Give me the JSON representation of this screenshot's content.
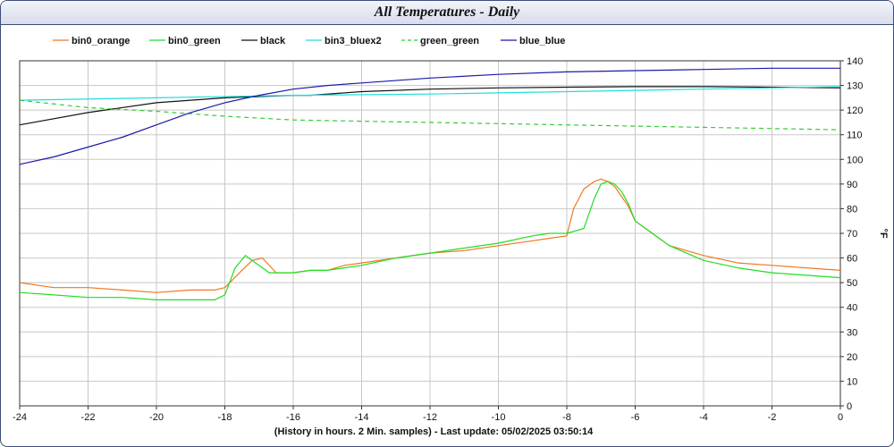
{
  "window": {
    "title": "All Temperatures - Daily"
  },
  "footer": {
    "caption": "(History in hours. 2 Min. samples) - Last update: 05/02/2025 03:50:14"
  },
  "colors": {
    "frame_border": "#3b4d7a",
    "grid": "#c8c8c8",
    "title_bg": "#e4e6f2"
  },
  "chart_data": {
    "type": "line",
    "title": "All Temperatures - Daily",
    "xlabel": "(History in hours. 2 Min. samples) - Last update: 05/02/2025 03:50:14",
    "ylabel": "°F",
    "xlim": [
      -24,
      0
    ],
    "ylim": [
      0,
      140
    ],
    "xticks": [
      -24,
      -22,
      -20,
      -18,
      -16,
      -14,
      -12,
      -10,
      -8,
      -6,
      -4,
      -2,
      0
    ],
    "yticks": [
      0,
      10,
      20,
      30,
      40,
      50,
      60,
      70,
      80,
      90,
      100,
      110,
      120,
      130,
      140
    ],
    "grid": true,
    "legend_position": "top",
    "series": [
      {
        "name": "bin0_orange",
        "color": "#f07820",
        "dash": "solid",
        "x": [
          -24,
          -23,
          -22,
          -21,
          -20,
          -19,
          -18.3,
          -18,
          -17.5,
          -17.2,
          -16.9,
          -16.5,
          -16,
          -15.5,
          -15,
          -14.5,
          -14,
          -13,
          -12,
          -11,
          -10,
          -9,
          -8.5,
          -8,
          -7.8,
          -7.5,
          -7.2,
          -7,
          -6.8,
          -6.6,
          -6.4,
          -6.2,
          -6,
          -5.5,
          -5,
          -4.5,
          -4,
          -3,
          -2,
          -1,
          0
        ],
        "y": [
          50,
          48,
          48,
          47,
          46,
          47,
          47,
          48,
          55,
          59,
          60,
          54,
          54,
          55,
          55,
          57,
          58,
          60,
          62,
          63,
          65,
          67,
          68,
          69,
          80,
          88,
          91,
          92,
          91,
          89,
          85,
          81,
          75,
          70,
          65,
          63,
          61,
          58,
          57,
          56,
          55
        ]
      },
      {
        "name": "bin0_green",
        "color": "#22dd22",
        "dash": "solid",
        "x": [
          -24,
          -23,
          -22,
          -21,
          -20,
          -19,
          -18.3,
          -18,
          -17.7,
          -17.4,
          -17.1,
          -16.7,
          -16.3,
          -16,
          -15.5,
          -15,
          -14.5,
          -14,
          -13,
          -12,
          -11,
          -10,
          -9,
          -8.5,
          -8,
          -7.5,
          -7.2,
          -7,
          -6.8,
          -6.6,
          -6.4,
          -6.2,
          -6,
          -5.5,
          -5,
          -4.5,
          -4,
          -3,
          -2,
          -1,
          0
        ],
        "y": [
          46,
          45,
          44,
          44,
          43,
          43,
          43,
          45,
          56,
          61,
          58,
          54,
          54,
          54,
          55,
          55,
          56,
          57,
          60,
          62,
          64,
          66,
          69,
          70,
          70,
          72,
          84,
          90,
          91,
          90,
          87,
          82,
          75,
          70,
          65,
          62,
          59,
          56,
          54,
          53,
          52
        ]
      },
      {
        "name": "black",
        "color": "#111111",
        "dash": "solid",
        "x": [
          -24,
          -22,
          -20,
          -18,
          -17,
          -16,
          -15.5,
          -14,
          -12,
          -10,
          -8,
          -6,
          -4,
          -2,
          0
        ],
        "y": [
          114,
          119,
          123,
          125,
          125.5,
          126,
          126,
          127.5,
          128.5,
          129,
          129.3,
          129.5,
          129.5,
          129.3,
          129
        ]
      },
      {
        "name": "bin3_bluex2",
        "color": "#22dddd",
        "dash": "solid",
        "x": [
          -24,
          -20,
          -16,
          -12,
          -8,
          -4,
          0
        ],
        "y": [
          124,
          125,
          126,
          126.5,
          127.5,
          128.5,
          129.5
        ]
      },
      {
        "name": "green_green",
        "color": "#33cc33",
        "dash": "dashed",
        "x": [
          -24,
          -22,
          -20,
          -18,
          -16,
          -14,
          -12,
          -10,
          -8,
          -6,
          -4,
          -2,
          0
        ],
        "y": [
          124,
          121,
          119.5,
          117.5,
          116,
          115.5,
          115,
          114.5,
          114,
          113.5,
          113,
          112.5,
          112
        ]
      },
      {
        "name": "blue_blue",
        "color": "#1a1aaa",
        "dash": "solid",
        "x": [
          -24,
          -23,
          -22,
          -21,
          -20,
          -19,
          -18,
          -17,
          -16,
          -15,
          -14,
          -12,
          -10,
          -8,
          -6,
          -4,
          -2,
          0
        ],
        "y": [
          98,
          101,
          105,
          109,
          114,
          119,
          123,
          126,
          128.5,
          130,
          131,
          133,
          134.5,
          135.5,
          136,
          136.5,
          137,
          137
        ]
      }
    ]
  }
}
